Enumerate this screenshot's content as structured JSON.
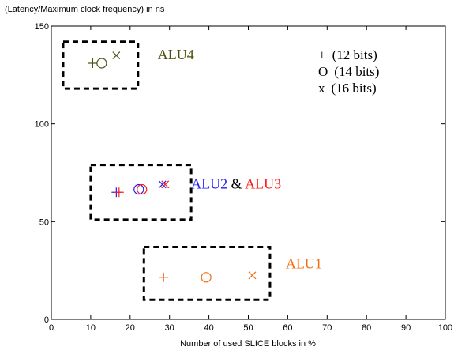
{
  "chart_data": {
    "type": "scatter",
    "ylabel": "(Latency/Maximum clock frequency) in ns",
    "xlabel": "Number of used SLICE blocks in %",
    "xlim": [
      0,
      100
    ],
    "ylim": [
      0,
      150
    ],
    "xticks": [
      "0",
      "10",
      "20",
      "30",
      "40",
      "50",
      "60",
      "70",
      "80",
      "90",
      "100"
    ],
    "yticks": [
      "0",
      "50",
      "100",
      "150"
    ],
    "grid": false,
    "legend": {
      "placement": "top-right",
      "entries": [
        {
          "marker": "+",
          "label": "(12 bits)"
        },
        {
          "marker": "O",
          "label": "(14 bits)"
        },
        {
          "marker": "x",
          "label": "(16 bits)"
        }
      ]
    },
    "colors": {
      "ALU1": "#f26d0f",
      "ALU2": "#1a1aff",
      "ALU3": "#ff1a1a",
      "ALU4": "#4d4d10",
      "box": "#000000"
    },
    "groups": [
      {
        "name": "ALU4",
        "label": "ALU4",
        "box": {
          "x": [
            3,
            22
          ],
          "y": [
            118,
            142
          ]
        },
        "points": [
          {
            "marker": "+",
            "x": 10.5,
            "y": 131
          },
          {
            "marker": "O",
            "x": 12.8,
            "y": 131
          },
          {
            "marker": "x",
            "x": 16.5,
            "y": 135
          }
        ]
      },
      {
        "name": "ALU2",
        "label_parts": [
          {
            "text": "ALU2",
            "color_key": "ALU2"
          },
          {
            "text": " & ",
            "color_key": "box"
          },
          {
            "text": "ALU3",
            "color_key": "ALU3"
          }
        ],
        "box": {
          "x": [
            10,
            35.5
          ],
          "y": [
            51,
            79
          ]
        },
        "points": [
          {
            "marker": "+",
            "x": 16.5,
            "y": 65,
            "color_key": "ALU2"
          },
          {
            "marker": "+",
            "x": 17.2,
            "y": 65,
            "color_key": "ALU3"
          },
          {
            "marker": "O",
            "x": 22.2,
            "y": 66.5,
            "color_key": "ALU2"
          },
          {
            "marker": "O",
            "x": 23.0,
            "y": 66.5,
            "color_key": "ALU3"
          },
          {
            "marker": "x",
            "x": 28.2,
            "y": 69,
            "color_key": "ALU2"
          },
          {
            "marker": "x",
            "x": 28.9,
            "y": 69,
            "color_key": "ALU3"
          }
        ]
      },
      {
        "name": "ALU1",
        "label": "ALU1",
        "box": {
          "x": [
            23.5,
            55.5
          ],
          "y": [
            10,
            37
          ]
        },
        "points": [
          {
            "marker": "+",
            "x": 28.5,
            "y": 21.5
          },
          {
            "marker": "O",
            "x": 39.3,
            "y": 21.5
          },
          {
            "marker": "x",
            "x": 51,
            "y": 22.5
          }
        ]
      }
    ]
  }
}
